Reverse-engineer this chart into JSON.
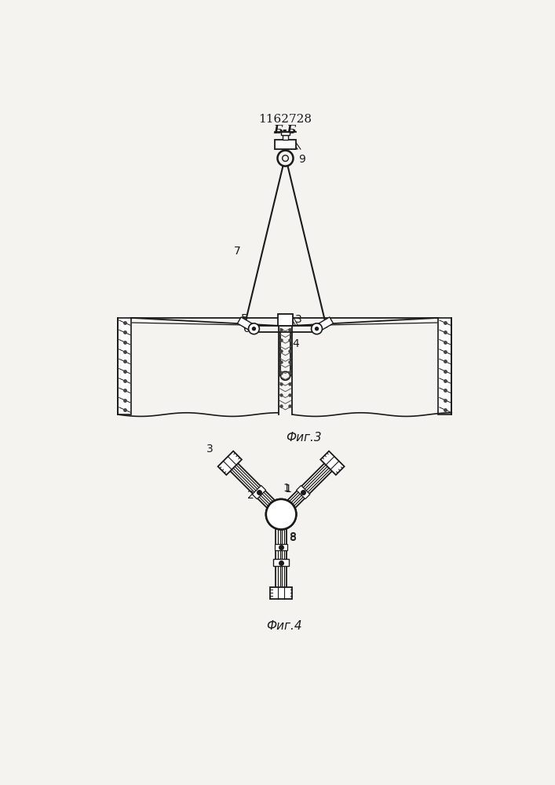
{
  "title": "1162728",
  "subtitle": "Б-Б",
  "fig3_label": "Фиг.3",
  "fig4_label": "Фиг.4",
  "bg_color": "#f5f3ef",
  "line_color": "#1a1a1a"
}
